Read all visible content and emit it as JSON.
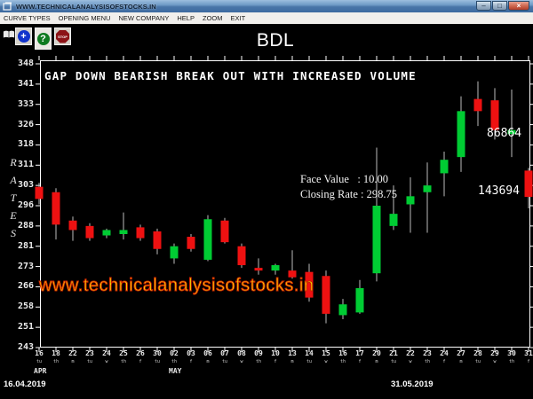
{
  "window": {
    "title": "WWW.TECHNICALANALYSISOFSTOCKS.IN",
    "controls": {
      "minimize": "–",
      "maximize": "□",
      "close": "×"
    }
  },
  "menu": {
    "items": [
      {
        "label": "CURVE TYPES"
      },
      {
        "label": "OPENING MENU"
      },
      {
        "label": "NEW COMPANY"
      },
      {
        "label": "HELP"
      },
      {
        "label": "ZOOM"
      },
      {
        "label": "EXIT"
      }
    ]
  },
  "toolbar": {
    "book_icon": "open-book",
    "add_glyph": "+",
    "help_glyph": "?",
    "stop_label": "STOP"
  },
  "chart_title": "BDL",
  "annotation": "GAP DOWN BEARISH BREAK OUT WITH INCREASED VOLUME",
  "info": {
    "face_value_line": "Face Value   : 10.00",
    "closing_rate_line": "Closing Rate : 298.75"
  },
  "volume_labels": [
    {
      "value": "86864"
    },
    {
      "value": "143694"
    }
  ],
  "watermark": "www.technicalanalysisofstocks.in",
  "footer": {
    "start_date": "16.04.2019",
    "end_date": "31.05.2019"
  },
  "chart_data": {
    "type": "candlestick",
    "title": "BDL",
    "ylabel": "RATES",
    "ylim": [
      243,
      349
    ],
    "y_ticks": [
      348,
      341,
      333,
      326,
      318,
      311,
      303,
      296,
      288,
      281,
      273,
      266,
      258,
      251,
      243
    ],
    "x_categories": [
      "16",
      "18",
      "22",
      "23",
      "24",
      "25",
      "26",
      "30",
      "02",
      "03",
      "06",
      "07",
      "08",
      "09",
      "10",
      "13",
      "14",
      "15",
      "16",
      "17",
      "20",
      "21",
      "22",
      "23",
      "24",
      "27",
      "28",
      "29",
      "30",
      "31"
    ],
    "x_day_codes": [
      "tu",
      "th",
      "m",
      "tu",
      "w",
      "th",
      "f",
      "tu",
      "th",
      "f",
      "m",
      "tu",
      "w",
      "th",
      "f",
      "m",
      "tu",
      "w",
      "th",
      "f",
      "m",
      "tu",
      "w",
      "th",
      "f",
      "m",
      "tu",
      "w",
      "th",
      "f"
    ],
    "month_labels": [
      {
        "index": 0,
        "label": "APR"
      },
      {
        "index": 8,
        "label": "MAY"
      }
    ],
    "face_value": 10.0,
    "closing_rate": 298.75,
    "candles": [
      {
        "o": 302.5,
        "h": 304.0,
        "l": 296.0,
        "c": 298.0
      },
      {
        "o": 300.5,
        "h": 302.0,
        "l": 283.0,
        "c": 288.5
      },
      {
        "o": 290.0,
        "h": 291.5,
        "l": 282.5,
        "c": 286.5
      },
      {
        "o": 288.0,
        "h": 289.0,
        "l": 282.5,
        "c": 283.5
      },
      {
        "o": 284.5,
        "h": 287.0,
        "l": 283.5,
        "c": 286.5
      },
      {
        "o": 285.0,
        "h": 293.0,
        "l": 283.0,
        "c": 286.5
      },
      {
        "o": 287.5,
        "h": 288.5,
        "l": 282.5,
        "c": 283.5
      },
      {
        "o": 286.0,
        "h": 287.0,
        "l": 277.5,
        "c": 279.5
      },
      {
        "o": 276.0,
        "h": 281.5,
        "l": 274.0,
        "c": 280.5
      },
      {
        "o": 284.0,
        "h": 285.0,
        "l": 278.5,
        "c": 279.5
      },
      {
        "o": 275.5,
        "h": 292.0,
        "l": 275.0,
        "c": 290.5
      },
      {
        "o": 290.0,
        "h": 291.0,
        "l": 281.5,
        "c": 282.0
      },
      {
        "o": 280.5,
        "h": 281.5,
        "l": 272.5,
        "c": 273.5
      },
      {
        "o": 272.5,
        "h": 276.0,
        "l": 270.0,
        "c": 271.5
      },
      {
        "o": 271.5,
        "h": 274.0,
        "l": 270.0,
        "c": 273.5
      },
      {
        "o": 271.5,
        "h": 279.0,
        "l": 268.5,
        "c": 269.0
      },
      {
        "o": 271.0,
        "h": 274.0,
        "l": 260.0,
        "c": 261.5
      },
      {
        "o": 269.5,
        "h": 271.5,
        "l": 252.0,
        "c": 255.5
      },
      {
        "o": 255.0,
        "h": 261.0,
        "l": 253.5,
        "c": 259.0
      },
      {
        "o": 256.0,
        "h": 268.0,
        "l": 255.5,
        "c": 265.0
      },
      {
        "o": 270.5,
        "h": 317.0,
        "l": 267.5,
        "c": 295.5
      },
      {
        "o": 288.0,
        "h": 303.0,
        "l": 286.5,
        "c": 292.5
      },
      {
        "o": 296.0,
        "h": 306.0,
        "l": 285.5,
        "c": 299.0
      },
      {
        "o": 300.5,
        "h": 311.5,
        "l": 285.5,
        "c": 303.0
      },
      {
        "o": 307.5,
        "h": 315.5,
        "l": 299.0,
        "c": 312.5
      },
      {
        "o": 313.5,
        "h": 336.0,
        "l": 308.0,
        "c": 330.5
      },
      {
        "o": 335.0,
        "h": 341.5,
        "l": 325.0,
        "c": 330.5
      },
      {
        "o": 334.5,
        "h": 339.0,
        "l": 320.0,
        "c": 323.5
      },
      {
        "o": 322.0,
        "h": 338.5,
        "l": 313.5,
        "c": 323.5
      },
      {
        "o": 308.5,
        "h": 309.5,
        "l": 294.5,
        "c": 298.75
      }
    ],
    "colors": {
      "up": "#00cc33",
      "down": "#ee1111",
      "wick": "#bbbbbb",
      "axis": "#ffffff",
      "watermark": "#ffff00",
      "watermark_stroke": "#cc2200"
    }
  }
}
